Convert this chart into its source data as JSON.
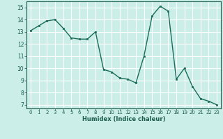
{
  "x": [
    0,
    1,
    2,
    3,
    4,
    5,
    6,
    7,
    8,
    9,
    10,
    11,
    12,
    13,
    14,
    15,
    16,
    17,
    18,
    19,
    20,
    21,
    22,
    23
  ],
  "y": [
    13.1,
    13.5,
    13.9,
    14.0,
    13.3,
    12.5,
    12.4,
    12.4,
    13.0,
    9.9,
    9.7,
    9.2,
    9.1,
    8.8,
    11.0,
    14.3,
    15.1,
    14.7,
    9.1,
    10.0,
    8.5,
    7.5,
    7.3,
    7.0
  ],
  "xlabel": "Humidex (Indice chaleur)",
  "xlim": [
    -0.5,
    23.5
  ],
  "ylim": [
    6.7,
    15.5
  ],
  "yticks": [
    7,
    8,
    9,
    10,
    11,
    12,
    13,
    14,
    15
  ],
  "xticks": [
    0,
    1,
    2,
    3,
    4,
    5,
    6,
    7,
    8,
    9,
    10,
    11,
    12,
    13,
    14,
    15,
    16,
    17,
    18,
    19,
    20,
    21,
    22,
    23
  ],
  "bg_color": "#cceee8",
  "grid_color": "#ffffff",
  "line_color": "#1a6b5a",
  "marker_color": "#1a6b5a",
  "label_color": "#1a5c4e",
  "tick_color": "#1a5c4e"
}
